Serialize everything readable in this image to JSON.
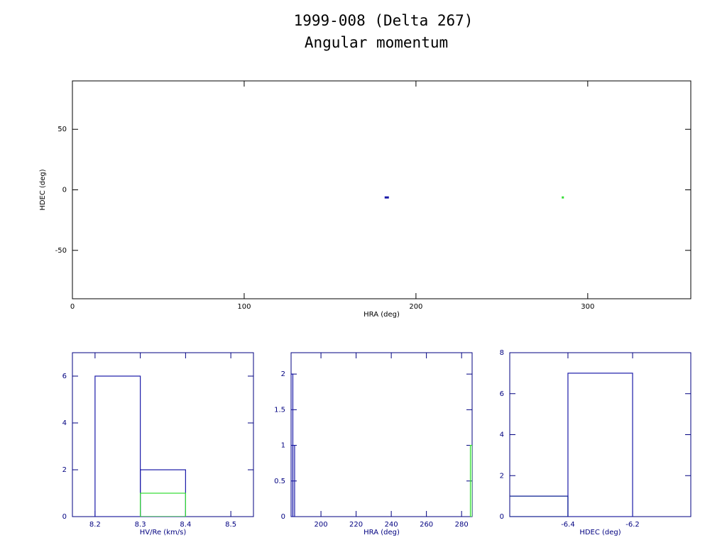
{
  "chart_data": [
    {
      "type": "scatter",
      "title": "1999-008 (Delta 267)",
      "subtitle": "Angular momentum",
      "x_label": "HRA (deg)",
      "y_label": "HDEC (deg)",
      "xlim": [
        0,
        360
      ],
      "ylim": [
        -90,
        90
      ],
      "xticks": [
        0,
        100,
        200,
        300
      ],
      "yticks": [
        -50,
        0,
        50
      ],
      "axis_color": "#000000",
      "series": [
        {
          "color": "#1a1aa8",
          "x": [
            183
          ],
          "values": [
            -6.3
          ]
        },
        {
          "color": "#33dd33",
          "x": [
            285.5
          ],
          "values": [
            -6.3
          ]
        }
      ]
    },
    {
      "type": "histogram",
      "x_label": "HV/Re (km/s)",
      "xlim": [
        8.15,
        8.55
      ],
      "ylim": [
        0,
        7
      ],
      "xticks": [
        8.2,
        8.3,
        8.4,
        8.5
      ],
      "yticks": [
        0,
        2,
        4,
        6
      ],
      "axis_color": "#000080",
      "series": [
        {
          "color": "#1a1aa8",
          "bins": [
            8.2,
            8.3,
            8.4
          ],
          "values": [
            6,
            2
          ]
        },
        {
          "color": "#33dd33",
          "bins": [
            8.3,
            8.4
          ],
          "values": [
            1
          ]
        }
      ]
    },
    {
      "type": "histogram",
      "x_label": "HRA (deg)",
      "xlim": [
        183,
        286
      ],
      "ylim": [
        0,
        2.3
      ],
      "xticks": [
        200,
        220,
        240,
        260,
        280
      ],
      "yticks": [
        0,
        0.5,
        1,
        1.5,
        2
      ],
      "axis_color": "#000080",
      "series": [
        {
          "color": "#1a1aa8",
          "bins": [
            183,
            184,
            185
          ],
          "values": [
            2,
            1
          ]
        },
        {
          "color": "#33dd33",
          "bins": [
            285,
            286
          ],
          "values": [
            1
          ]
        }
      ]
    },
    {
      "type": "histogram",
      "x_label": "HDEC (deg)",
      "xlim": [
        -6.58,
        -6.02
      ],
      "ylim": [
        0,
        8
      ],
      "xticks": [
        -6.4,
        -6.2
      ],
      "yticks": [
        0,
        2,
        4,
        6,
        8
      ],
      "axis_color": "#000080",
      "series": [
        {
          "color": "#33dd33",
          "bins": [
            -6.6,
            -6.4
          ],
          "values": [
            1
          ]
        },
        {
          "color": "#1a1aa8",
          "bins": [
            -6.6,
            -6.4,
            -6.2
          ],
          "values": [
            1,
            7
          ]
        }
      ]
    }
  ]
}
